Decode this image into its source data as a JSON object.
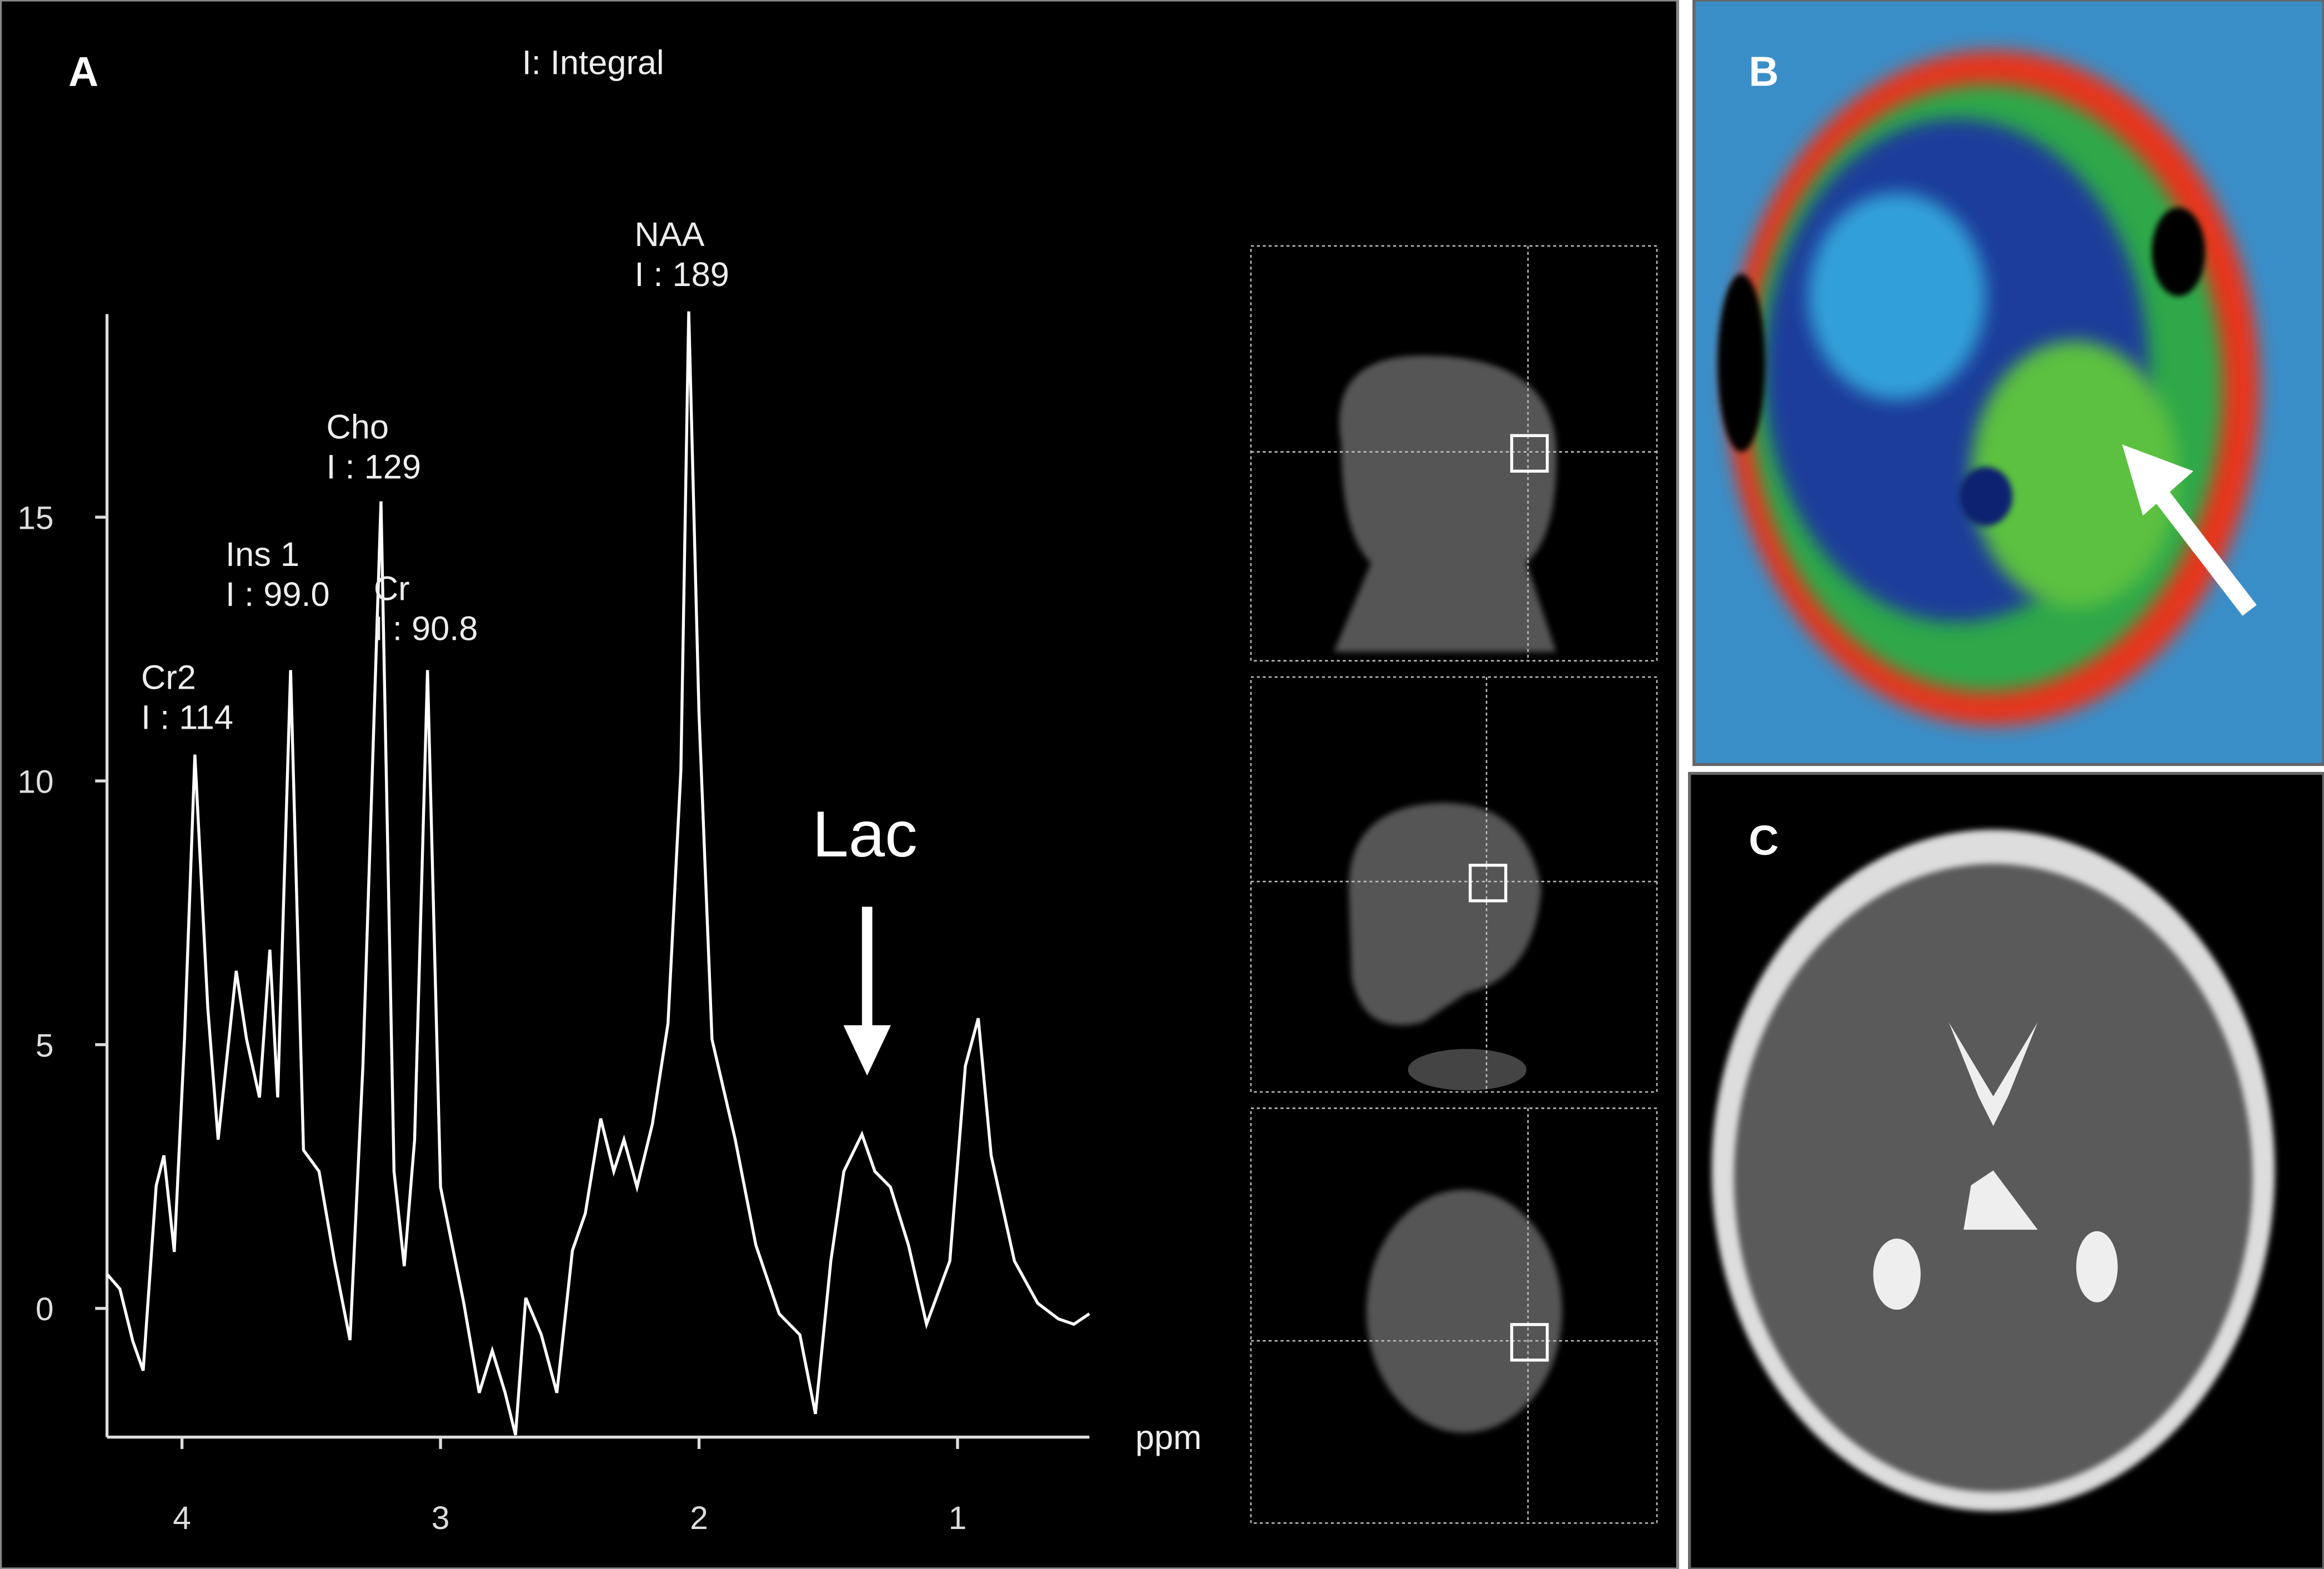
{
  "panel_labels": [
    "A",
    "B",
    "C"
  ],
  "chart_data": {
    "type": "line",
    "title": "I: Integral",
    "x_label": "ppm",
    "arrow_label": "Lac",
    "color": "#ffffff",
    "x": [
      4.29,
      4.24,
      4.19,
      4.15,
      4.1,
      4.07,
      4.03,
      3.99,
      3.95,
      3.9,
      3.86,
      3.79,
      3.75,
      3.7,
      3.66,
      3.63,
      3.58,
      3.53,
      3.47,
      3.41,
      3.35,
      3.3,
      3.23,
      3.18,
      3.14,
      3.1,
      3.05,
      3.0,
      2.91,
      2.85,
      2.8,
      2.75,
      2.71,
      2.67,
      2.61,
      2.55,
      2.49,
      2.44,
      2.38,
      2.33,
      2.29,
      2.24,
      2.18,
      2.12,
      2.07,
      2.04,
      2.0,
      1.95,
      1.86,
      1.78,
      1.69,
      1.61,
      1.55,
      1.49,
      1.44,
      1.37,
      1.32,
      1.26,
      1.19,
      1.12,
      1.03,
      0.97,
      0.92,
      0.87,
      0.78,
      0.69,
      0.61,
      0.55,
      0.49
    ],
    "values": [
      0.65,
      0.37,
      -0.62,
      -1.18,
      2.33,
      2.9,
      1.07,
      5.1,
      10.5,
      5.7,
      3.2,
      6.4,
      5.1,
      4.0,
      6.8,
      4.0,
      12.1,
      3.0,
      2.6,
      0.9,
      -0.6,
      4.6,
      15.3,
      2.6,
      0.8,
      3.2,
      12.1,
      2.3,
      0.1,
      -1.6,
      -0.8,
      -1.6,
      -2.4,
      0.2,
      -0.5,
      -1.6,
      1.1,
      1.8,
      3.6,
      2.6,
      3.2,
      2.3,
      3.5,
      5.4,
      10.2,
      18.9,
      11.3,
      5.1,
      3.2,
      1.2,
      -0.1,
      -0.5,
      -2.0,
      0.9,
      2.6,
      3.3,
      2.6,
      2.3,
      1.2,
      -0.3,
      0.9,
      4.6,
      5.5,
      2.9,
      0.9,
      0.1,
      -0.2,
      -0.3,
      -0.1
    ],
    "xlim": [
      4.29,
      0.49
    ],
    "ylim": [
      -2.44,
      18.85
    ],
    "xticks": [
      4,
      3,
      2,
      1
    ],
    "yticks": [
      0,
      5,
      10,
      15
    ],
    "grid": false,
    "annotations": [
      {
        "name": "Cr2",
        "integral": "I : 114"
      },
      {
        "name": "Ins 1",
        "integral": "I : 99.0"
      },
      {
        "name": "Cho",
        "integral": "I : 129"
      },
      {
        "name": "Cr",
        "integral": "I : 90.8"
      },
      {
        "name": "NAA",
        "integral": "I : 189"
      }
    ]
  }
}
